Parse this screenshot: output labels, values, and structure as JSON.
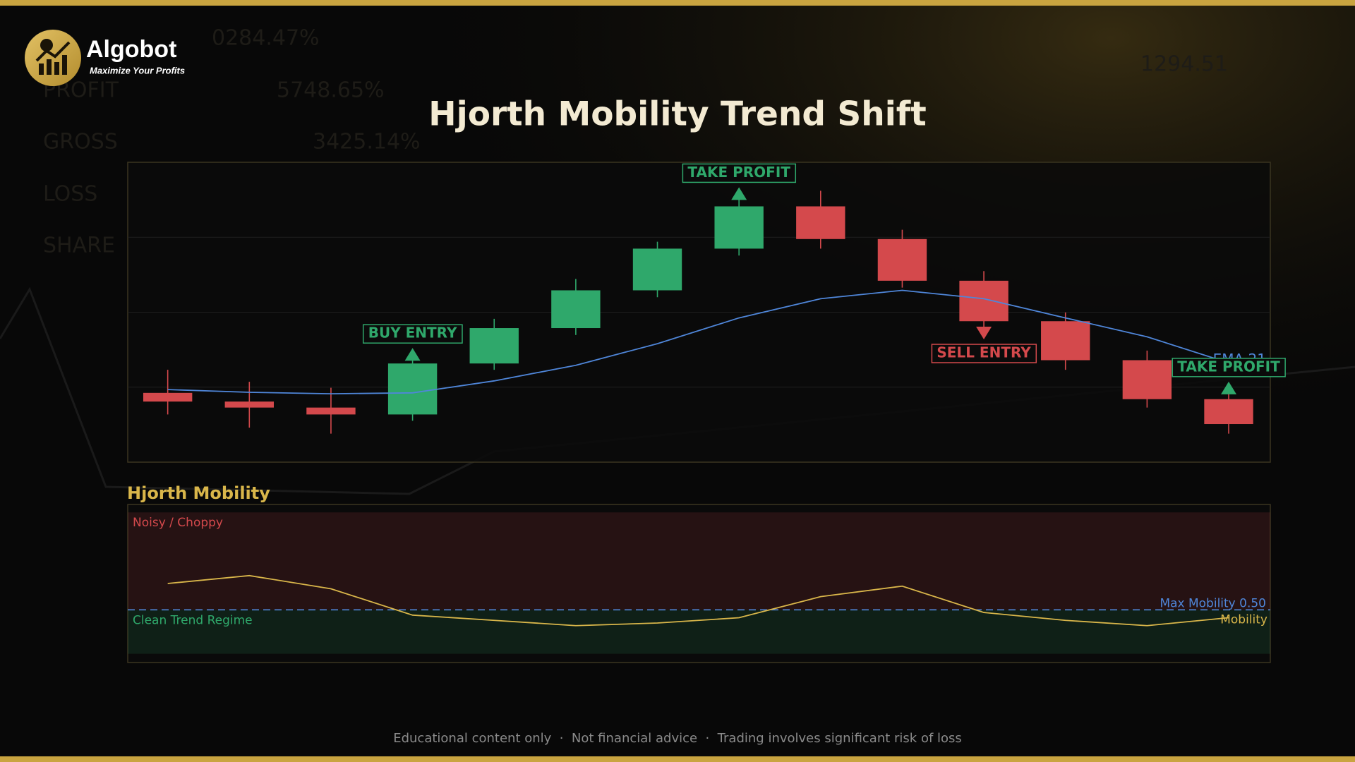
{
  "brand": {
    "name": "Algobot",
    "tagline": "Maximize Your Profits"
  },
  "background_texts": [
    "0284.47%",
    "PROFIT",
    "5748.65%",
    "GROSS",
    "3425.14%",
    "LOSS",
    "SHARE",
    "1294.51"
  ],
  "footer": "Educational content only  ·  Not financial advice  ·  Trading involves significant risk of loss",
  "chart_data": [
    {
      "type": "candlestick",
      "title": "Hjorth Mobility Trend Shift",
      "categories": [
        null,
        null,
        null,
        null,
        null,
        null,
        null,
        null,
        null,
        null,
        null,
        null,
        null,
        null
      ],
      "open": [
        23.1,
        20.2,
        18.2,
        15.9,
        32.9,
        44.7,
        57.3,
        71.2,
        85.3,
        74.4,
        60.5,
        47.0,
        34.0,
        21.0
      ],
      "high": [
        30.8,
        26.8,
        24.8,
        34.3,
        47.8,
        61.1,
        73.5,
        87.9,
        90.5,
        77.5,
        63.7,
        49.9,
        37.2,
        23.1
      ],
      "low": [
        15.9,
        11.5,
        9.5,
        13.8,
        30.8,
        42.4,
        55.0,
        68.9,
        71.2,
        58.2,
        44.7,
        30.8,
        18.2,
        9.5
      ],
      "close": [
        20.2,
        18.2,
        15.9,
        32.9,
        44.7,
        57.3,
        71.2,
        85.3,
        74.4,
        60.5,
        47.0,
        34.0,
        21.0,
        12.7
      ],
      "up_color": "#2fa86b",
      "down_color": "#d4494c",
      "series": [
        {
          "name": "EMA 21",
          "color": "#4f86d9",
          "values": [
            24.2,
            23.3,
            22.8,
            23.1,
            27.1,
            32.3,
            39.5,
            48.1,
            54.5,
            57.3,
            54.5,
            48.1,
            41.8,
            33.1
          ]
        }
      ],
      "signals": [
        null,
        null,
        null,
        {
          "text": "BUY ENTRY",
          "color": "#2fa86b",
          "direction": "up"
        },
        null,
        null,
        null,
        {
          "text": "TAKE PROFIT",
          "color": "#2fa86b",
          "direction": "up"
        },
        null,
        null,
        {
          "text": "SELL ENTRY",
          "color": "#d4494c",
          "direction": "down"
        },
        null,
        null,
        {
          "text": "TAKE PROFIT",
          "color": "#2fa86b",
          "direction": "up"
        }
      ],
      "ylim": [
        0,
        100
      ],
      "yticks": [
        25,
        50,
        75
      ],
      "grid": true
    },
    {
      "type": "line",
      "title": "Hjorth Mobility",
      "categories": [
        null,
        null,
        null,
        null,
        null,
        null,
        null,
        null,
        null,
        null,
        null,
        null,
        null,
        null
      ],
      "series": [
        {
          "name": "Mobility",
          "color": "#d9b64a",
          "values": [
            0.6,
            0.63,
            0.58,
            0.48,
            0.46,
            0.44,
            0.45,
            0.47,
            0.55,
            0.59,
            0.49,
            0.46,
            0.44,
            0.47
          ]
        }
      ],
      "zones": [
        {
          "name": "Noisy / Choppy",
          "range": [
            0.5,
            0.87
          ],
          "color": "#d4494c"
        },
        {
          "name": "Clean Trend Regime",
          "range": [
            0.333,
            0.5
          ],
          "color": "#2fa86b"
        }
      ],
      "threshold": {
        "value": 0.5,
        "label": "Max Mobility 0.50",
        "color": "#4f86d9"
      },
      "ylim": [
        0.3,
        0.9
      ]
    }
  ]
}
